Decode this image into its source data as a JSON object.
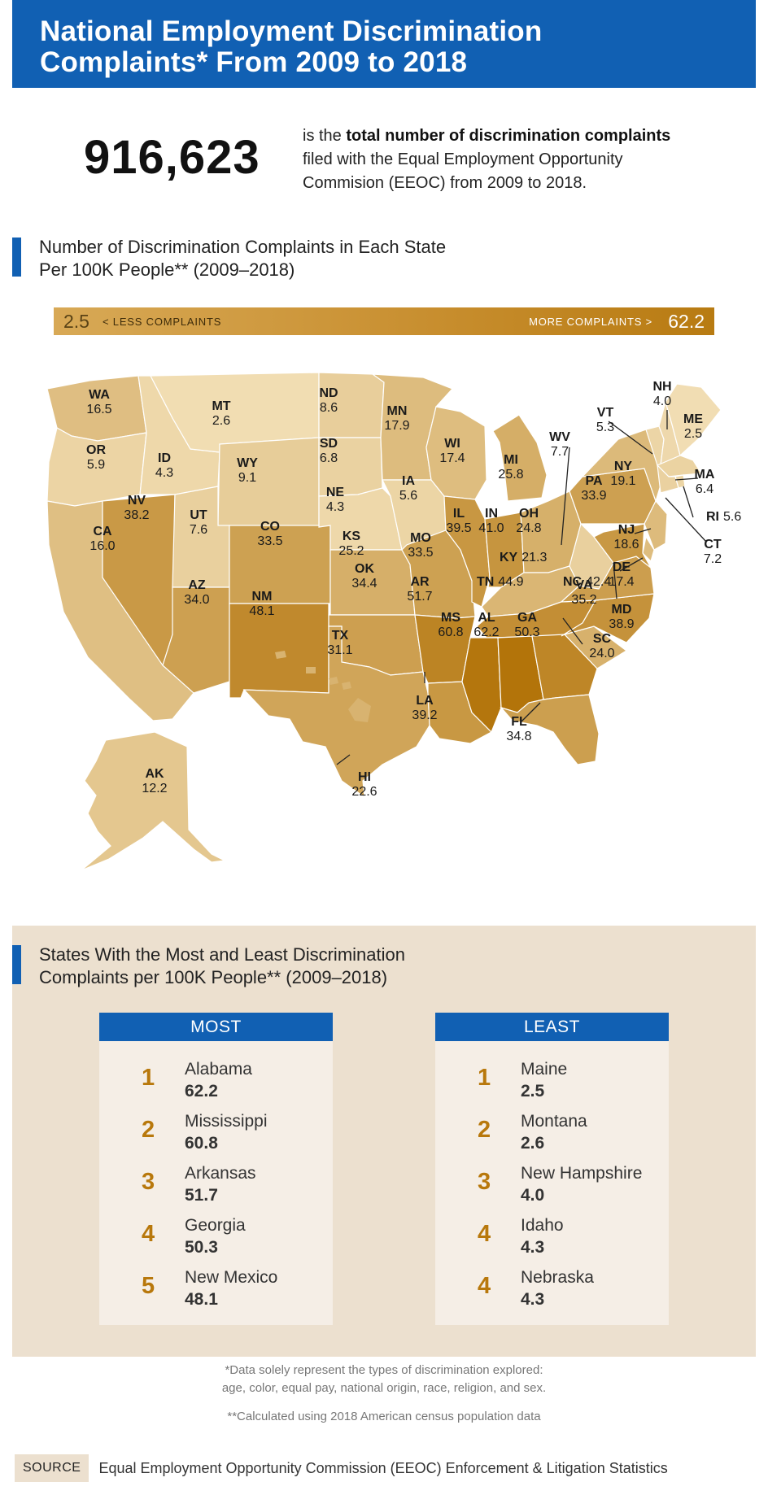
{
  "header": {
    "title_line1": "National Employment Discrimination",
    "title_line2": "Complaints* From 2009 to 2018"
  },
  "total": {
    "number": "916,623",
    "desc_pre": "is the ",
    "desc_bold": "total number of discrimination complaints",
    "desc_line2": "filed with the Equal Employment Opportunity",
    "desc_line3": "Commision (EEOC) from 2009 to 2018."
  },
  "map_section": {
    "title_line1": "Number of Discrimination Complaints in Each State",
    "title_line2": "Per 100K People** (2009–2018)"
  },
  "legend": {
    "min": "2.5",
    "min_label": "< LESS COMPLAINTS",
    "max_label": "MORE COMPLAINTS >",
    "max": "62.2",
    "color_low": "#f1ddb3",
    "color_high": "#b3740a"
  },
  "states": {
    "WA": "16.5",
    "OR": "5.9",
    "CA": "16.0",
    "NV": "38.2",
    "ID": "4.3",
    "MT": "2.6",
    "WY": "9.1",
    "UT": "7.6",
    "AZ": "34.0",
    "CO": "33.5",
    "NM": "48.1",
    "ND": "8.6",
    "SD": "6.8",
    "NE": "4.3",
    "KS": "25.2",
    "OK": "34.4",
    "TX": "31.1",
    "MN": "17.9",
    "IA": "5.6",
    "MO": "33.5",
    "AR": "51.7",
    "LA": "39.2",
    "WI": "17.4",
    "IL": "39.5",
    "MI": "25.8",
    "IN": "41.0",
    "OH": "24.8",
    "KY": "21.3",
    "TN": "44.9",
    "MS": "60.8",
    "AL": "62.2",
    "GA": "50.3",
    "FL": "34.8",
    "SC": "24.0",
    "NC": "42.4",
    "VA": "35.2",
    "WV": "7.7",
    "PA": "33.9",
    "NY": "19.1",
    "VT": "5.3",
    "NH": "4.0",
    "ME": "2.5",
    "MA": "6.4",
    "RI": "5.6",
    "CT": "7.2",
    "NJ": "18.6",
    "DE": "17.4",
    "MD": "38.9",
    "AK": "12.2",
    "HI": "22.6"
  },
  "ranking_section": {
    "title_line1": "States With the Most and Least Discrimination",
    "title_line2": "Complaints per 100K People** (2009–2018)"
  },
  "most": {
    "label": "MOST",
    "items": [
      {
        "rank": "1",
        "name": "Alabama",
        "value": "62.2"
      },
      {
        "rank": "2",
        "name": "Mississippi",
        "value": "60.8"
      },
      {
        "rank": "3",
        "name": "Arkansas",
        "value": "51.7"
      },
      {
        "rank": "4",
        "name": "Georgia",
        "value": "50.3"
      },
      {
        "rank": "5",
        "name": "New Mexico",
        "value": "48.1"
      }
    ]
  },
  "least": {
    "label": "LEAST",
    "items": [
      {
        "rank": "1",
        "name": "Maine",
        "value": "2.5"
      },
      {
        "rank": "2",
        "name": "Montana",
        "value": "2.6"
      },
      {
        "rank": "3",
        "name": "New Hampshire",
        "value": "4.0"
      },
      {
        "rank": "4",
        "name": "Idaho",
        "value": "4.3"
      },
      {
        "rank": "4",
        "name": "Nebraska",
        "value": "4.3"
      }
    ]
  },
  "footnotes": {
    "note1_line1": "*Data solely represent the types of discrimination explored:",
    "note1_line2": "age, color, equal pay, national origin, race, religion, and sex.",
    "note2": "**Calculated using 2018 American census population data"
  },
  "source": {
    "tag": "SOURCE",
    "text": "Equal Employment Opportunity Commission (EEOC) Enforcement & Litigation Statistics"
  }
}
